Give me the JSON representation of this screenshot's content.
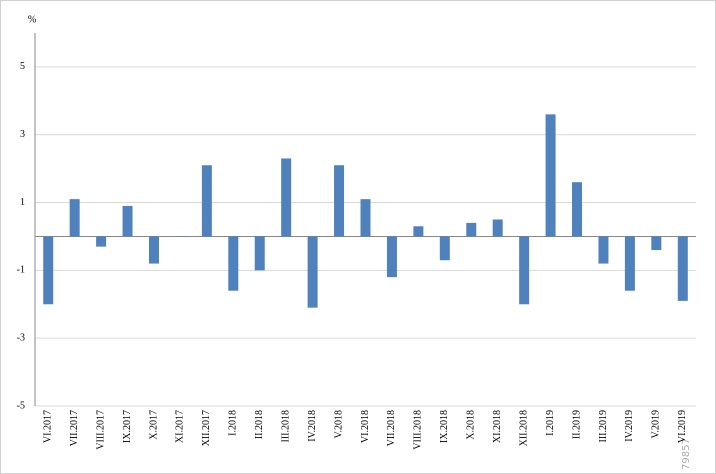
{
  "chart_data": {
    "type": "bar",
    "y_label": "%",
    "categories": [
      "VI.2017",
      "VII.2017",
      "VIII.2017",
      "IX.2017",
      "X.2017",
      "XI.2017",
      "XII.2017",
      "I.2018",
      "II.2018",
      "III.2018",
      "IV.2018",
      "V.2018",
      "VI.2018",
      "VII.2018",
      "VIII.2018",
      "IX.2018",
      "X.2018",
      "XI.2018",
      "XII.2018",
      "I.2019",
      "II.2019",
      "III.2019",
      "IV.2019",
      "V.2019",
      "VI.2019"
    ],
    "values": [
      -2.0,
      1.1,
      -0.3,
      0.9,
      -0.8,
      0.0,
      2.1,
      -1.6,
      -1.0,
      2.3,
      -2.1,
      2.1,
      1.1,
      -1.2,
      0.3,
      -0.7,
      0.4,
      0.5,
      -2.0,
      3.6,
      1.6,
      -0.8,
      -1.6,
      -0.4,
      -1.9
    ],
    "color": "#4f81bd",
    "ylim": [
      -5,
      6
    ],
    "yticks": [
      -5,
      -3,
      -1,
      1,
      3,
      5
    ],
    "grid": true,
    "watermark": "79857"
  }
}
